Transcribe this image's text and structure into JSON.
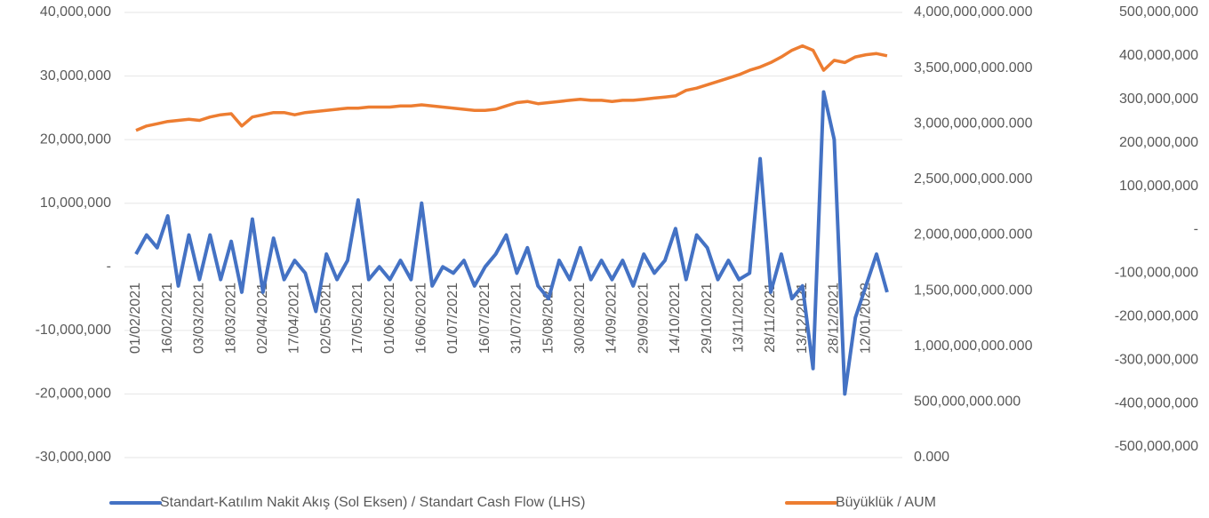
{
  "chart_data": {
    "type": "line",
    "categories": [
      "01/02/2021",
      null,
      null,
      "16/02/2021",
      null,
      null,
      "03/03/2021",
      null,
      null,
      "18/03/2021",
      null,
      null,
      "02/04/2021",
      null,
      null,
      "17/04/2021",
      null,
      null,
      "02/05/2021",
      null,
      null,
      "17/05/2021",
      null,
      null,
      "01/06/2021",
      null,
      null,
      "16/06/2021",
      null,
      null,
      "01/07/2021",
      null,
      null,
      "16/07/2021",
      null,
      null,
      "31/07/2021",
      null,
      null,
      "15/08/2021",
      null,
      null,
      "30/08/2021",
      null,
      null,
      "14/09/2021",
      null,
      null,
      "29/09/2021",
      null,
      null,
      "14/10/2021",
      null,
      null,
      "29/10/2021",
      null,
      null,
      "13/11/2021",
      null,
      null,
      "28/11/2021",
      null,
      null,
      "13/12/2021",
      null,
      null,
      "28/12/2021",
      null,
      null,
      "12/01/2022",
      null,
      null
    ],
    "series": [
      {
        "name": "Standart-Katılım Nakit Akış (Sol Eksen) / Standart Cash Flow (LHS)",
        "color": "#4472c4",
        "axis": "y",
        "values": [
          2000000,
          5000000,
          3000000,
          8000000,
          -3000000,
          5000000,
          -2000000,
          5000000,
          -2000000,
          4000000,
          -4000000,
          7500000,
          -4000000,
          4500000,
          -2000000,
          1000000,
          -1000000,
          -7000000,
          2000000,
          -2000000,
          1000000,
          10500000,
          -2000000,
          0,
          -2000000,
          1000000,
          -2000000,
          10000000,
          -3000000,
          0,
          -1000000,
          1000000,
          -3000000,
          0,
          2000000,
          5000000,
          -1000000,
          3000000,
          -3000000,
          -5000000,
          1000000,
          -2000000,
          3000000,
          -2000000,
          1000000,
          -2000000,
          1000000,
          -3000000,
          2000000,
          -1000000,
          1000000,
          6000000,
          -2000000,
          5000000,
          3000000,
          -2000000,
          1000000,
          -2000000,
          -1000000,
          17000000,
          -4000000,
          2000000,
          -5000000,
          -3000000,
          -16000000,
          27500000,
          20000000,
          -20000000,
          -8000000,
          -3000000,
          2000000,
          -4000000
        ]
      },
      {
        "name": "Büyüklük / AUM",
        "color": "#ed7d31",
        "axis": "y2",
        "values": [
          2940000000000,
          2980000000000,
          3000000000000,
          3020000000000,
          3030000000000,
          3040000000000,
          3030000000000,
          3060000000000,
          3080000000000,
          3090000000000,
          2980000000000,
          3060000000000,
          3080000000000,
          3100000000000,
          3100000000000,
          3080000000000,
          3100000000000,
          3110000000000,
          3120000000000,
          3130000000000,
          3140000000000,
          3140000000000,
          3150000000000,
          3150000000000,
          3150000000000,
          3160000000000,
          3160000000000,
          3170000000000,
          3160000000000,
          3150000000000,
          3140000000000,
          3130000000000,
          3120000000000,
          3120000000000,
          3130000000000,
          3160000000000,
          3190000000000,
          3200000000000,
          3180000000000,
          3190000000000,
          3200000000000,
          3210000000000,
          3220000000000,
          3210000000000,
          3210000000000,
          3200000000000,
          3210000000000,
          3210000000000,
          3220000000000,
          3230000000000,
          3240000000000,
          3250000000000,
          3300000000000,
          3320000000000,
          3350000000000,
          3380000000000,
          3410000000000,
          3440000000000,
          3480000000000,
          3510000000000,
          3550000000000,
          3600000000000,
          3660000000000,
          3700000000000,
          3660000000000,
          3480000000000,
          3570000000000,
          3550000000000,
          3600000000000,
          3620000000000,
          3630000000000,
          3610000000000
        ]
      }
    ],
    "ylim": [
      -30000000,
      40000000
    ],
    "yticks": [
      {
        "value": -30000000,
        "label": "-30,000,000"
      },
      {
        "value": -20000000,
        "label": "-20,000,000"
      },
      {
        "value": -10000000,
        "label": "-10,000,000"
      },
      {
        "value": 0,
        "label": "-"
      },
      {
        "value": 10000000,
        "label": "10,000,000"
      },
      {
        "value": 20000000,
        "label": "20,000,000"
      },
      {
        "value": 30000000,
        "label": "30,000,000"
      },
      {
        "value": 40000000,
        "label": "40,000,000"
      }
    ],
    "y2lim": [
      0,
      4000000000000
    ],
    "y2ticks": [
      {
        "value": 0,
        "label": "0.000"
      },
      {
        "value": 500000000000,
        "label": "500,000,000.000"
      },
      {
        "value": 1000000000000,
        "label": "1,000,000,000.000"
      },
      {
        "value": 1500000000000,
        "label": "1,500,000,000.000"
      },
      {
        "value": 2000000000000,
        "label": "2,000,000,000.000"
      },
      {
        "value": 2500000000000,
        "label": "2,500,000,000.000"
      },
      {
        "value": 3000000000000,
        "label": "3,000,000,000.000"
      },
      {
        "value": 3500000000000,
        "label": "3,500,000,000.000"
      },
      {
        "value": 4000000000000,
        "label": "4,000,000,000.000"
      }
    ],
    "y3lim": [
      -500000000,
      500000000
    ],
    "y3ticks": [
      {
        "value": -500000000,
        "label": "-500,000,000"
      },
      {
        "value": -400000000,
        "label": "-400,000,000"
      },
      {
        "value": -300000000,
        "label": "-300,000,000"
      },
      {
        "value": -200000000,
        "label": "-200,000,000"
      },
      {
        "value": -100000000,
        "label": "-100,000,000"
      },
      {
        "value": 0,
        "label": "-"
      },
      {
        "value": 100000000,
        "label": "100,000,000"
      },
      {
        "value": 200000000,
        "label": "200,000,000"
      },
      {
        "value": 300000000,
        "label": "300,000,000"
      },
      {
        "value": 400000000,
        "label": "400,000,000"
      },
      {
        "value": 500000000,
        "label": "500,000,000"
      }
    ],
    "grid": true,
    "legend": "bottom"
  }
}
